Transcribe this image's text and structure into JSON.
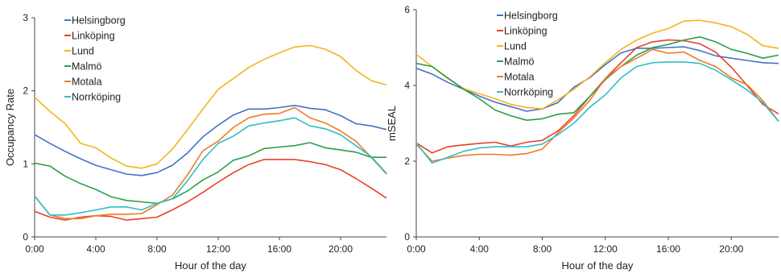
{
  "chart_data": [
    {
      "type": "line",
      "xlabel": "Hour of the day",
      "ylabel": "Occupancy Rate",
      "xlim": [
        0,
        23
      ],
      "ylim": [
        0,
        3
      ],
      "x_ticks": [
        0,
        4,
        8,
        12,
        16,
        20
      ],
      "x_tick_labels": [
        "0:00",
        "4:00",
        "8:00",
        "12:00",
        "16:00",
        "20:00"
      ],
      "y_ticks": [
        0,
        1,
        2,
        3
      ],
      "y_tick_labels": [
        "0",
        "1",
        "2",
        "3"
      ],
      "grid": false,
      "legend_position": "top-left",
      "x": [
        0,
        1,
        2,
        3,
        4,
        5,
        6,
        7,
        8,
        9,
        10,
        11,
        12,
        13,
        14,
        15,
        16,
        17,
        18,
        19,
        20,
        21,
        22,
        23
      ],
      "series": [
        {
          "name": "Helsingborg",
          "color": "#4472C4",
          "values": [
            1.4,
            1.28,
            1.17,
            1.07,
            0.98,
            0.92,
            0.86,
            0.84,
            0.88,
            0.98,
            1.15,
            1.37,
            1.53,
            1.67,
            1.75,
            1.75,
            1.77,
            1.8,
            1.76,
            1.74,
            1.66,
            1.55,
            1.52,
            1.47
          ]
        },
        {
          "name": "Linköping",
          "color": "#E8412B",
          "values": [
            0.35,
            0.27,
            0.23,
            0.27,
            0.29,
            0.28,
            0.23,
            0.25,
            0.27,
            0.37,
            0.48,
            0.61,
            0.75,
            0.88,
            0.99,
            1.06,
            1.06,
            1.06,
            1.03,
            0.99,
            0.92,
            0.8,
            0.67,
            0.53
          ]
        },
        {
          "name": "Lund",
          "color": "#F2B51B",
          "values": [
            1.91,
            1.72,
            1.55,
            1.28,
            1.22,
            1.08,
            0.97,
            0.94,
            1.0,
            1.2,
            1.47,
            1.75,
            2.02,
            2.17,
            2.32,
            2.43,
            2.52,
            2.6,
            2.62,
            2.57,
            2.47,
            2.28,
            2.14,
            2.08
          ]
        },
        {
          "name": "Malmö",
          "color": "#2E9E4A",
          "values": [
            1.01,
            0.97,
            0.83,
            0.73,
            0.65,
            0.55,
            0.5,
            0.48,
            0.46,
            0.52,
            0.63,
            0.78,
            0.89,
            1.05,
            1.11,
            1.21,
            1.23,
            1.25,
            1.29,
            1.22,
            1.19,
            1.16,
            1.09,
            1.09
          ]
        },
        {
          "name": "Motala",
          "color": "#F07A23",
          "values": [
            0.56,
            0.3,
            0.25,
            0.25,
            0.29,
            0.31,
            0.31,
            0.32,
            0.44,
            0.57,
            0.85,
            1.18,
            1.31,
            1.5,
            1.63,
            1.68,
            1.69,
            1.77,
            1.63,
            1.56,
            1.45,
            1.31,
            1.09,
            0.86
          ]
        },
        {
          "name": "Norrköping",
          "color": "#2FBFC6",
          "values": [
            0.56,
            0.3,
            0.3,
            0.33,
            0.37,
            0.41,
            0.41,
            0.37,
            0.46,
            0.52,
            0.77,
            1.06,
            1.28,
            1.38,
            1.52,
            1.56,
            1.59,
            1.63,
            1.52,
            1.48,
            1.4,
            1.25,
            1.1,
            0.87
          ]
        }
      ]
    },
    {
      "type": "line",
      "xlabel": "Hour of the day",
      "ylabel": "mSEAL",
      "xlim": [
        0,
        23
      ],
      "ylim": [
        0,
        6
      ],
      "x_ticks": [
        0,
        4,
        8,
        12,
        16,
        20
      ],
      "x_tick_labels": [
        "0:00",
        "4:00",
        "8:00",
        "12:00",
        "16:00",
        "20:00"
      ],
      "y_ticks": [
        0,
        2,
        4,
        6
      ],
      "y_tick_labels": [
        "0",
        "2",
        "4",
        "6"
      ],
      "grid": false,
      "legend_position": "top-center",
      "x": [
        0,
        1,
        2,
        3,
        4,
        5,
        6,
        7,
        8,
        9,
        10,
        11,
        12,
        13,
        14,
        15,
        16,
        17,
        18,
        19,
        20,
        21,
        22,
        23
      ],
      "series": [
        {
          "name": "Helsingborg",
          "color": "#4472C4",
          "values": [
            4.45,
            4.3,
            4.08,
            3.9,
            3.72,
            3.56,
            3.44,
            3.32,
            3.38,
            3.55,
            3.95,
            4.2,
            4.55,
            4.86,
            4.98,
            4.98,
            5.0,
            5.02,
            4.92,
            4.78,
            4.72,
            4.66,
            4.6,
            4.58
          ]
        },
        {
          "name": "Linköping",
          "color": "#E8412B",
          "values": [
            2.48,
            2.22,
            2.38,
            2.43,
            2.47,
            2.5,
            2.4,
            2.5,
            2.55,
            2.8,
            3.2,
            3.7,
            4.18,
            4.6,
            5.0,
            5.15,
            5.2,
            5.18,
            5.1,
            4.88,
            4.48,
            4.0,
            3.5,
            3.25
          ]
        },
        {
          "name": "Lund",
          "color": "#F2B51B",
          "values": [
            4.82,
            4.5,
            4.18,
            3.92,
            3.78,
            3.65,
            3.5,
            3.42,
            3.38,
            3.62,
            3.9,
            4.22,
            4.6,
            4.95,
            5.2,
            5.38,
            5.5,
            5.7,
            5.72,
            5.65,
            5.55,
            5.35,
            5.05,
            4.98
          ]
        },
        {
          "name": "Malmö",
          "color": "#2E9E4A",
          "values": [
            4.58,
            4.5,
            4.2,
            3.9,
            3.65,
            3.35,
            3.2,
            3.08,
            3.12,
            3.24,
            3.28,
            3.7,
            4.15,
            4.5,
            4.8,
            5.0,
            5.08,
            5.2,
            5.28,
            5.15,
            4.95,
            4.85,
            4.72,
            4.8
          ]
        },
        {
          "name": "Motala",
          "color": "#F07A23",
          "values": [
            2.45,
            2.0,
            2.08,
            2.15,
            2.18,
            2.18,
            2.16,
            2.2,
            2.32,
            2.75,
            3.14,
            3.6,
            4.18,
            4.5,
            4.72,
            4.95,
            4.85,
            4.88,
            4.66,
            4.5,
            4.2,
            4.02,
            3.6,
            3.05
          ]
        },
        {
          "name": "Norrköping",
          "color": "#2FBFC6",
          "values": [
            2.48,
            1.95,
            2.1,
            2.26,
            2.35,
            2.38,
            2.38,
            2.38,
            2.45,
            2.7,
            3.0,
            3.42,
            3.75,
            4.2,
            4.5,
            4.6,
            4.62,
            4.62,
            4.58,
            4.4,
            4.15,
            3.88,
            3.55,
            3.05
          ]
        }
      ]
    }
  ]
}
